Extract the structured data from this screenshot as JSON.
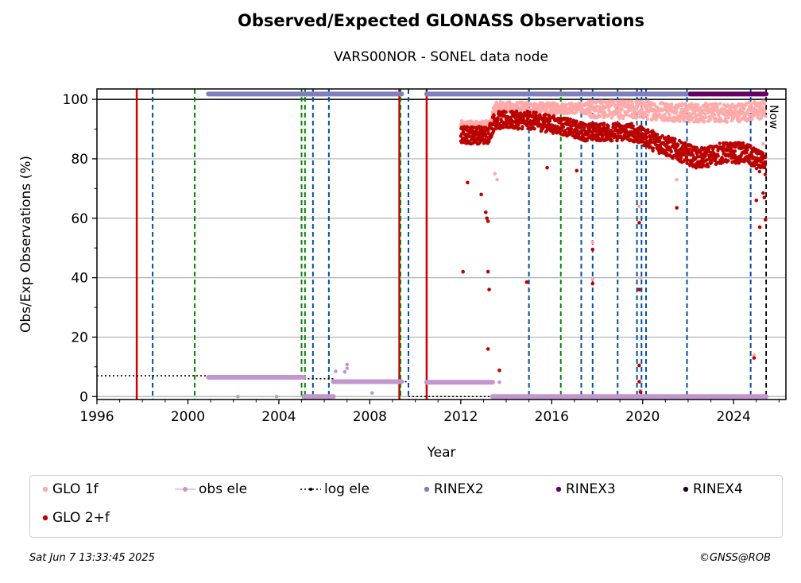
{
  "header": {
    "title": "Observed/Expected GLONASS Observations",
    "subtitle": "VARS00NOR - SONEL data node"
  },
  "footer": {
    "date": "Sat Jun  7 13:33:45 2025",
    "credit": "©GNSS@ROB"
  },
  "chart_data": {
    "type": "scatter",
    "xlabel": "Year",
    "ylabel": "Obs/Exp Observations (%)",
    "xlim": [
      1996,
      2026.3
    ],
    "ylim": [
      -1,
      103.5
    ],
    "xticks": [
      1996,
      2000,
      2004,
      2008,
      2012,
      2016,
      2020,
      2024
    ],
    "yticks": [
      0,
      20,
      40,
      60,
      80,
      100
    ],
    "grid": "horizontal",
    "reference_line": 100,
    "now_label": "Now",
    "now_x": 2025.43,
    "colors": {
      "glo1f": "#ffaaaa",
      "glo2f": "#bb0000",
      "obs_ele": "#c396d0",
      "log_ele": "#000000",
      "rinex2": "#7f7fbf",
      "rinex3": "#660066",
      "rinex4": "#220022",
      "red_line": "#cc0000",
      "blue_line": "#0050a0",
      "green_line": "#008800"
    },
    "vertical_lines": {
      "red": [
        1997.75,
        2009.3,
        2010.5
      ],
      "blue": [
        1998.45,
        2005.5,
        2006.2,
        2009.7,
        2015.0,
        2017.3,
        2017.8,
        2018.9,
        2019.75,
        2019.95,
        2020.15,
        2021.95,
        2024.75
      ],
      "green": [
        2000.3,
        2005.0,
        2005.15,
        2009.35,
        2016.4
      ]
    },
    "rinex_bars": [
      {
        "series": "RINEX2",
        "start": 2000.9,
        "end": 2009.4,
        "y": 101.8
      },
      {
        "series": "RINEX2",
        "start": 2010.5,
        "end": 2022.1,
        "y": 101.8
      },
      {
        "series": "RINEX3",
        "start": 2022.1,
        "end": 2025.43,
        "y": 101.8
      }
    ],
    "log_ele_segments": [
      {
        "start": 1996.0,
        "end": 2005.1,
        "y": 7
      },
      {
        "start": 2005.1,
        "end": 2006.4,
        "y": 6
      },
      {
        "start": 2006.4,
        "end": 2009.7,
        "y": 5
      },
      {
        "start": 2009.7,
        "end": 2025.43,
        "y": 0
      }
    ],
    "obs_ele_segments": [
      {
        "start": 2000.9,
        "end": 2005.1,
        "y": 6.5
      },
      {
        "start": 2005.1,
        "end": 2006.4,
        "y": 0
      },
      {
        "start": 2006.4,
        "end": 2009.4,
        "y": 5
      },
      {
        "start": 2010.5,
        "end": 2013.4,
        "y": 4.8
      },
      {
        "start": 2013.4,
        "end": 2025.43,
        "y": 0
      }
    ],
    "obs_ele_outliers": [
      {
        "x": 2002.2,
        "y": 0
      },
      {
        "x": 2003.9,
        "y": 0
      },
      {
        "x": 2006.5,
        "y": 8.5
      },
      {
        "x": 2006.9,
        "y": 8.3
      },
      {
        "x": 2007.0,
        "y": 10.8
      },
      {
        "x": 2007.0,
        "y": 9.5
      },
      {
        "x": 2008.1,
        "y": 1.2
      },
      {
        "x": 2013.7,
        "y": 4.8
      },
      {
        "x": 2019.9,
        "y": 2.0
      }
    ],
    "glo1f_trend": [
      {
        "x": 2012.0,
        "y": 91
      },
      {
        "x": 2013.3,
        "y": 91
      },
      {
        "x": 2013.5,
        "y": 97.5
      },
      {
        "x": 2016.0,
        "y": 97
      },
      {
        "x": 2018.0,
        "y": 97
      },
      {
        "x": 2020.0,
        "y": 96.5
      },
      {
        "x": 2022.0,
        "y": 95.5
      },
      {
        "x": 2024.0,
        "y": 95.5
      },
      {
        "x": 2025.4,
        "y": 96.5
      }
    ],
    "glo2f_trend": [
      {
        "x": 2012.0,
        "y": 88
      },
      {
        "x": 2013.2,
        "y": 88
      },
      {
        "x": 2013.5,
        "y": 93
      },
      {
        "x": 2015.0,
        "y": 93
      },
      {
        "x": 2016.5,
        "y": 91
      },
      {
        "x": 2017.5,
        "y": 89
      },
      {
        "x": 2018.5,
        "y": 89
      },
      {
        "x": 2019.5,
        "y": 89
      },
      {
        "x": 2020.5,
        "y": 86
      },
      {
        "x": 2021.5,
        "y": 83
      },
      {
        "x": 2022.5,
        "y": 80
      },
      {
        "x": 2023.5,
        "y": 82
      },
      {
        "x": 2024.5,
        "y": 82
      },
      {
        "x": 2025.4,
        "y": 78
      }
    ],
    "glo1f_outliers": [
      {
        "x": 2013.5,
        "y": 75
      },
      {
        "x": 2013.6,
        "y": 73
      },
      {
        "x": 2017.8,
        "y": 52
      },
      {
        "x": 2017.8,
        "y": 39.5
      },
      {
        "x": 2019.85,
        "y": 64
      },
      {
        "x": 2019.9,
        "y": 40
      },
      {
        "x": 2021.5,
        "y": 73
      },
      {
        "x": 2024.9,
        "y": 14
      },
      {
        "x": 2025.3,
        "y": 85
      }
    ],
    "glo2f_outliers": [
      {
        "x": 2012.1,
        "y": 42
      },
      {
        "x": 2012.3,
        "y": 72
      },
      {
        "x": 2012.9,
        "y": 68
      },
      {
        "x": 2013.1,
        "y": 62
      },
      {
        "x": 2013.15,
        "y": 60
      },
      {
        "x": 2013.2,
        "y": 59
      },
      {
        "x": 2013.2,
        "y": 42
      },
      {
        "x": 2013.25,
        "y": 36
      },
      {
        "x": 2013.2,
        "y": 16
      },
      {
        "x": 2013.7,
        "y": 8.8
      },
      {
        "x": 2014.9,
        "y": 38.5
      },
      {
        "x": 2015.8,
        "y": 77
      },
      {
        "x": 2017.1,
        "y": 76
      },
      {
        "x": 2017.8,
        "y": 49.5
      },
      {
        "x": 2017.8,
        "y": 38
      },
      {
        "x": 2019.85,
        "y": 58.5
      },
      {
        "x": 2019.85,
        "y": 36
      },
      {
        "x": 2019.85,
        "y": 10.5
      },
      {
        "x": 2019.85,
        "y": 5
      },
      {
        "x": 2019.9,
        "y": 1.5
      },
      {
        "x": 2021.5,
        "y": 63.5
      },
      {
        "x": 2024.9,
        "y": 13
      },
      {
        "x": 2025.0,
        "y": 66
      },
      {
        "x": 2025.15,
        "y": 57
      },
      {
        "x": 2025.3,
        "y": 68.5
      },
      {
        "x": 2025.4,
        "y": 59.5
      },
      {
        "x": 2025.35,
        "y": 67
      }
    ],
    "legend": [
      {
        "key": "glo1f",
        "label": "GLO 1f",
        "style": "dot"
      },
      {
        "key": "obs_ele",
        "label": "obs ele",
        "style": "line-dot"
      },
      {
        "key": "log_ele",
        "label": "log ele",
        "style": "dotted-dot"
      },
      {
        "key": "rinex2",
        "label": "RINEX2",
        "style": "dot"
      },
      {
        "key": "rinex3",
        "label": "RINEX3",
        "style": "dot"
      },
      {
        "key": "rinex4",
        "label": "RINEX4",
        "style": "dot"
      },
      {
        "key": "glo2f",
        "label": "GLO 2+f",
        "style": "dot"
      }
    ]
  }
}
